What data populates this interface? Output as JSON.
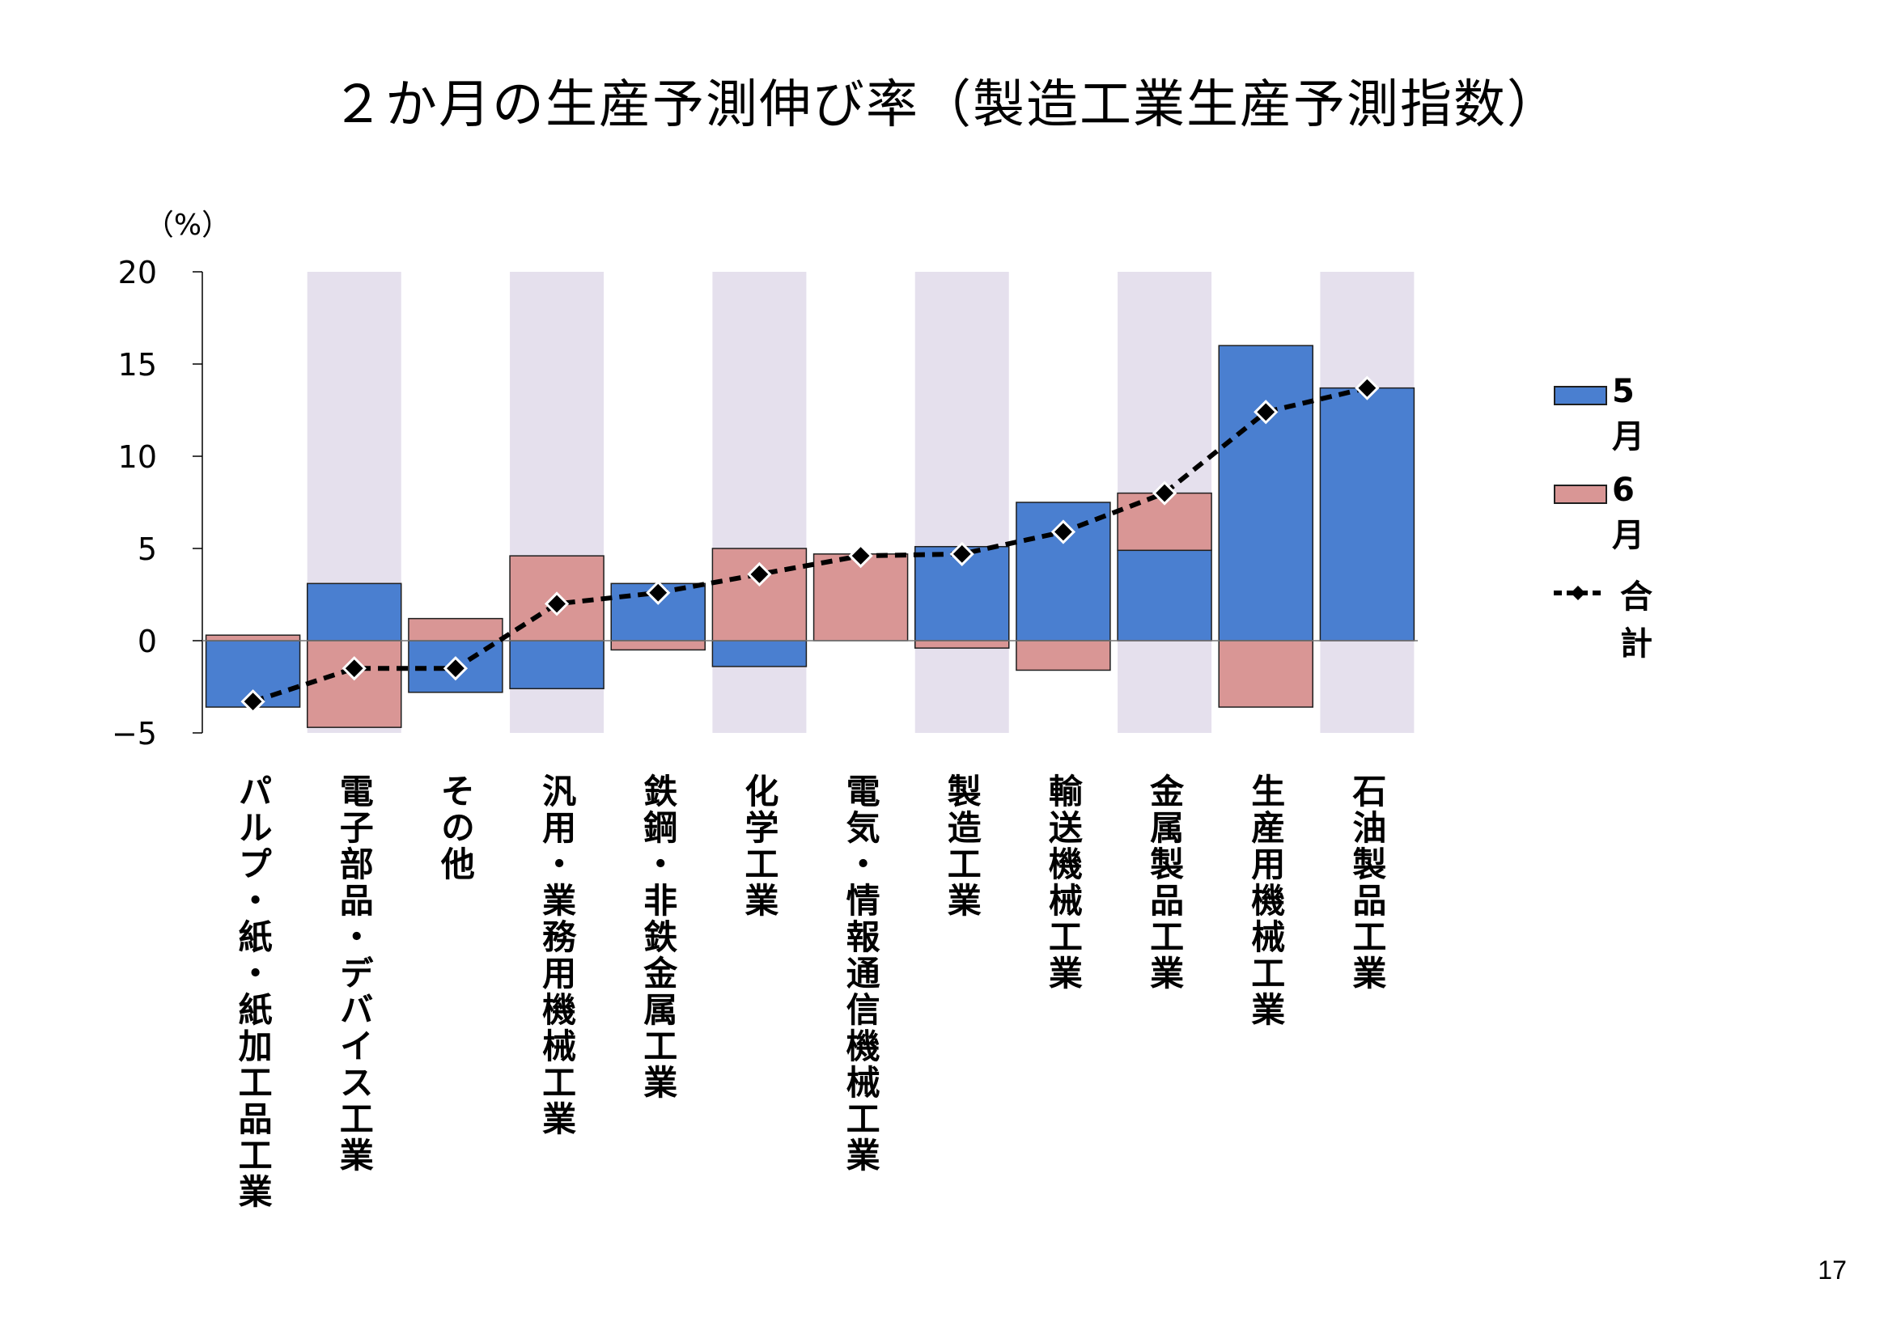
{
  "title": "２か月の生産予測伸び率（製造工業生産予測指数）",
  "page_number": "17",
  "colors": {
    "may": "#4a7fd0",
    "june": "#d99695",
    "band": "#e5e0ed",
    "line": "#000000"
  },
  "chart_data": {
    "type": "bar",
    "stacked": true,
    "unit_label": "（%）",
    "ylim": [
      -5,
      20
    ],
    "yticks": [
      -5,
      0,
      5,
      10,
      15,
      20
    ],
    "ytick_labels": [
      "−5",
      "0",
      "5",
      "10",
      "15",
      "20"
    ],
    "grid": false,
    "alternating_bands": true,
    "categories": [
      "パルプ・紙・紙加工品工業",
      "電子部品・デバイス工業",
      "その他",
      "汎用・業務用機械工業",
      "鉄鋼・非鉄金属工業",
      "化学工業",
      "電気・情報通信機械工業",
      "製造工業",
      "輸送機械工業",
      "金属製品工業",
      "生産用機械工業",
      "石油製品工業"
    ],
    "series": [
      {
        "name": "5月",
        "type": "bar",
        "values": [
          -3.6,
          3.1,
          -2.8,
          -2.6,
          3.1,
          -1.4,
          0.0,
          5.1,
          7.5,
          4.9,
          16.0,
          13.7
        ]
      },
      {
        "name": "6月",
        "type": "bar",
        "values": [
          0.3,
          -4.7,
          1.2,
          4.6,
          -0.5,
          5.0,
          4.7,
          -0.4,
          -1.6,
          3.1,
          -3.6,
          0.0
        ]
      },
      {
        "name": "合計",
        "type": "line",
        "values": [
          -3.3,
          -1.5,
          -1.5,
          2.0,
          2.6,
          3.6,
          4.6,
          4.7,
          5.9,
          8.0,
          12.4,
          13.7
        ]
      }
    ],
    "legend": {
      "position": "right",
      "entries": [
        "5月",
        "6月",
        "合計"
      ]
    }
  }
}
